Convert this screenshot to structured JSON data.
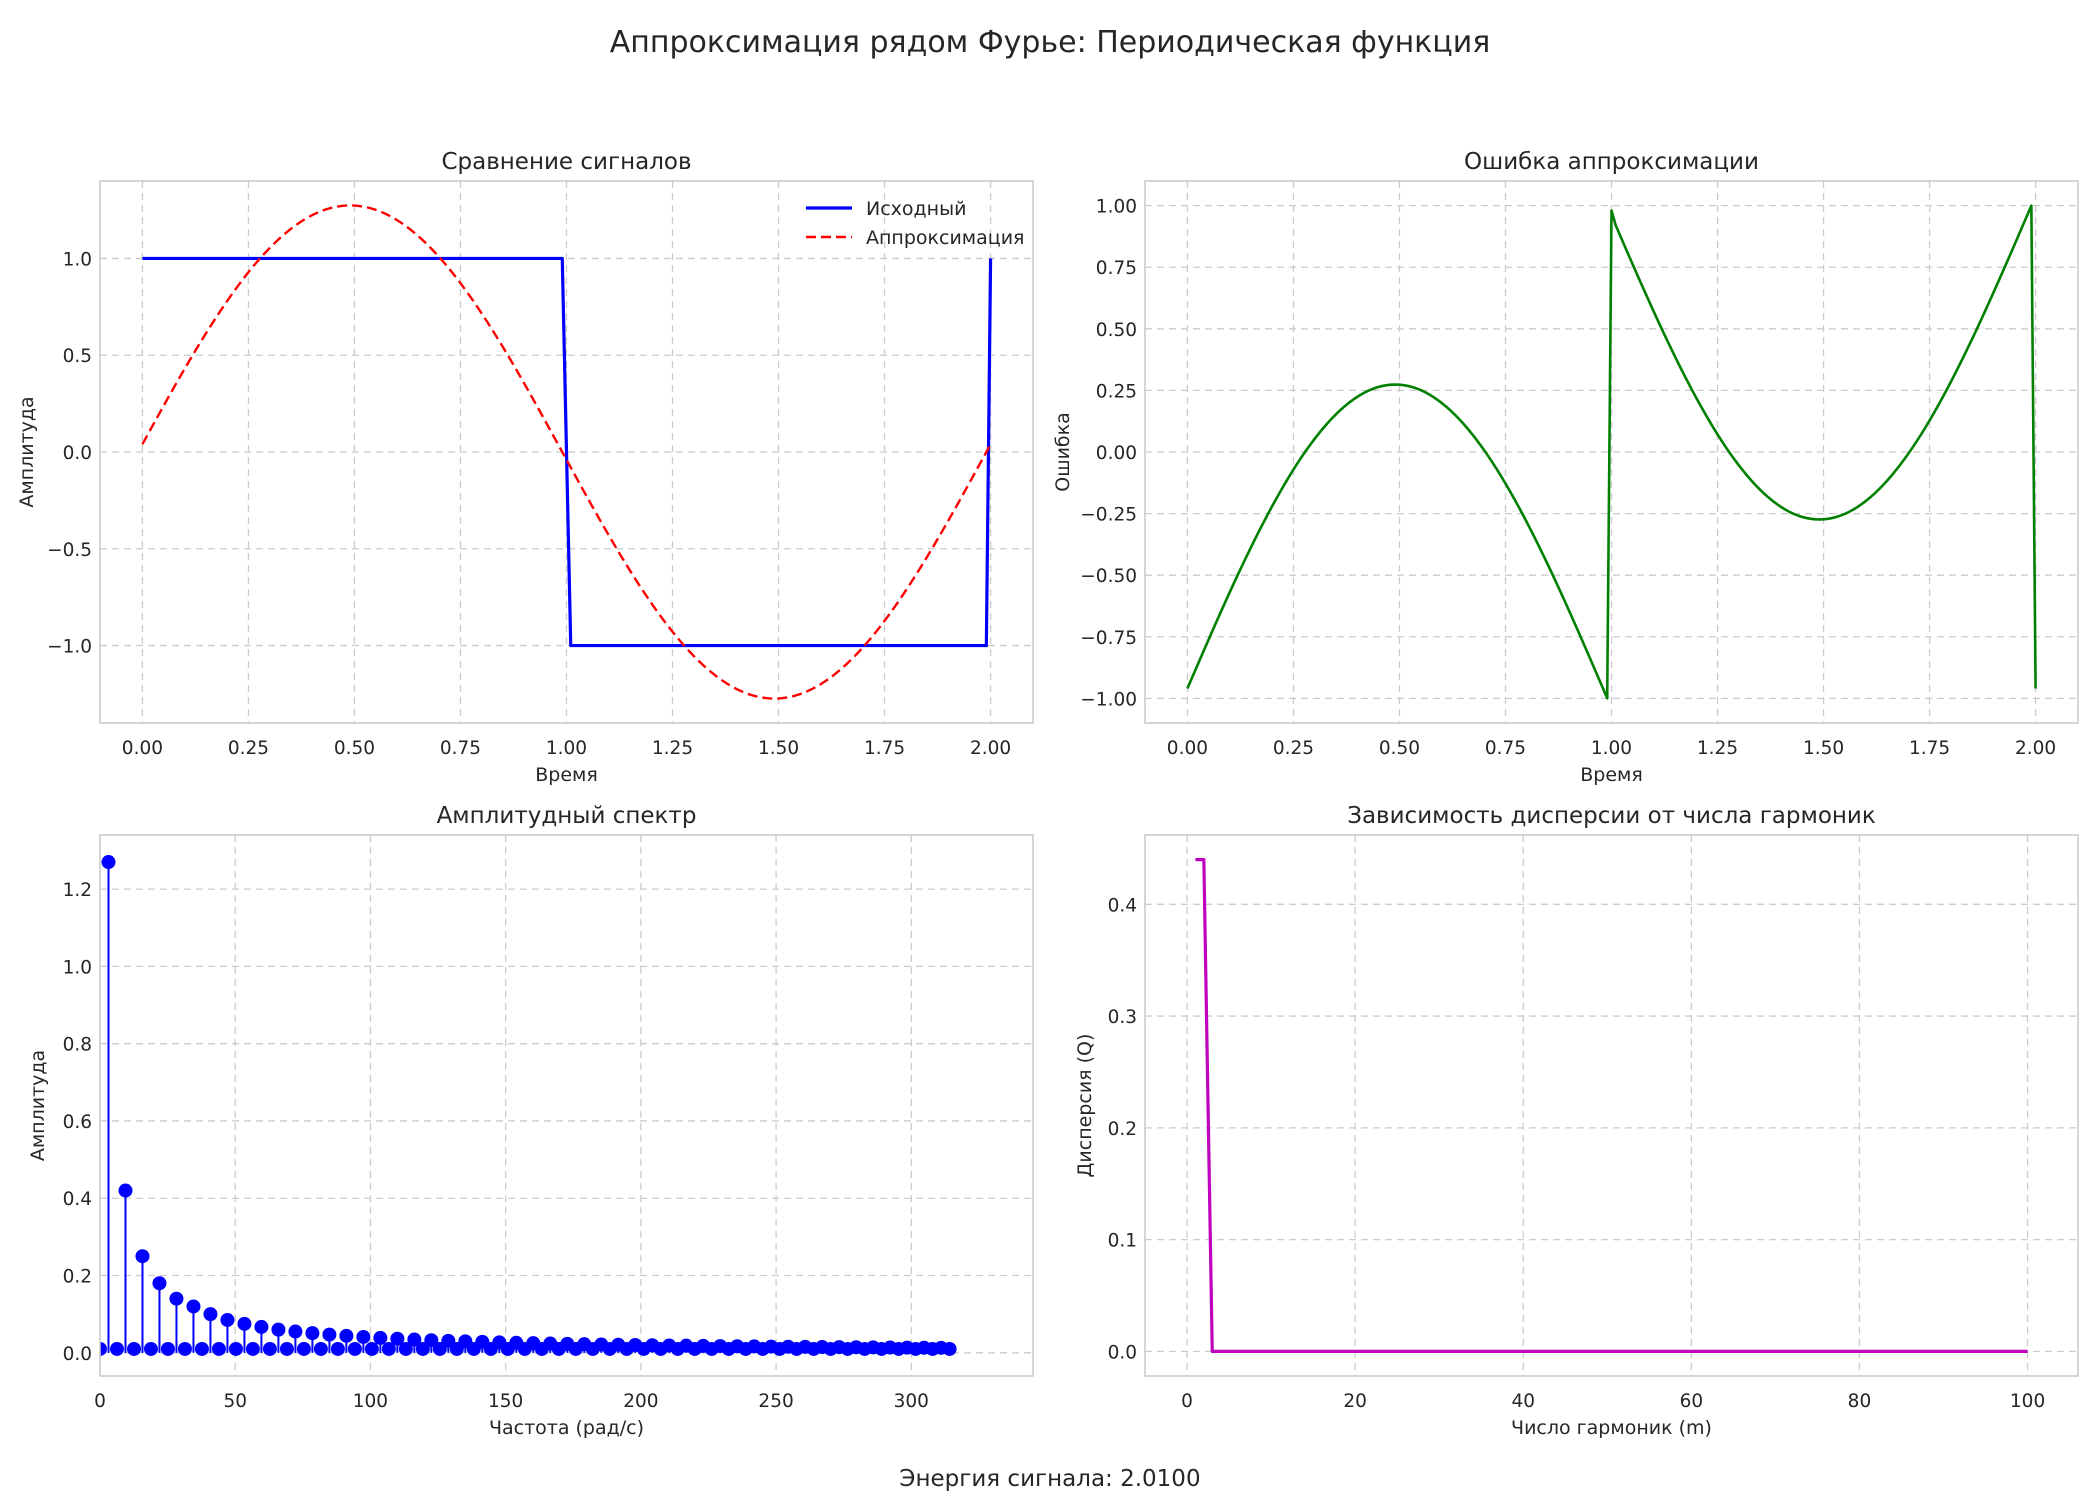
{
  "figure": {
    "suptitle": "Аппроксимация рядом Фурье: Периодическая функция",
    "footer": "Энергия сигнала: 2.0100"
  },
  "chart_data": [
    {
      "type": "line",
      "title": "Сравнение сигналов",
      "xlabel": "Время",
      "ylabel": "Амплитуда",
      "xlim": [
        -0.1,
        2.1
      ],
      "ylim": [
        -1.4,
        1.4
      ],
      "xticks": [
        0,
        0.25,
        0.5,
        0.75,
        1.0,
        1.25,
        1.5,
        1.75,
        2.0
      ],
      "xtick_labels": [
        "0.00",
        "0.25",
        "0.50",
        "0.75",
        "1.00",
        "1.25",
        "1.50",
        "1.75",
        "2.00"
      ],
      "yticks": [
        -1.0,
        -0.5,
        0.0,
        0.5,
        1.0
      ],
      "ytick_labels": [
        "−1.0",
        "−0.5",
        "0.0",
        "0.5",
        "1.0"
      ],
      "grid": true,
      "legend": "top-right",
      "series": [
        {
          "name": "Исходный",
          "color": "#0000ff",
          "style": "solid",
          "x": [
            0,
            0.99,
            1.0,
            1.01,
            1.99,
            2.0
          ],
          "y": [
            1,
            1,
            0,
            -1,
            -1,
            1
          ]
        },
        {
          "name": "Аппроксимация",
          "color": "#ff0000",
          "style": "dashed",
          "x": [
            0,
            0.1,
            0.2,
            0.3,
            0.4,
            0.5,
            0.6,
            0.7,
            0.8,
            0.9,
            1.0,
            1.1,
            1.2,
            1.3,
            1.4,
            1.5,
            1.6,
            1.7,
            1.8,
            1.9,
            2.0
          ],
          "y": [
            0.04,
            0.39,
            0.74,
            1.03,
            1.21,
            1.27,
            1.21,
            1.03,
            0.74,
            0.39,
            0.0,
            -0.39,
            -0.74,
            -1.03,
            -1.21,
            -1.27,
            -1.21,
            -1.03,
            -0.74,
            -0.39,
            0.04
          ]
        }
      ]
    },
    {
      "type": "line",
      "title": "Ошибка аппроксимации",
      "xlabel": "Время",
      "ylabel": "Ошибка",
      "xlim": [
        -0.1,
        2.1
      ],
      "ylim": [
        -1.1,
        1.1
      ],
      "xticks": [
        0,
        0.25,
        0.5,
        0.75,
        1.0,
        1.25,
        1.5,
        1.75,
        2.0
      ],
      "xtick_labels": [
        "0.00",
        "0.25",
        "0.50",
        "0.75",
        "1.00",
        "1.25",
        "1.50",
        "1.75",
        "2.00"
      ],
      "yticks": [
        -1.0,
        -0.75,
        -0.5,
        -0.25,
        0.0,
        0.25,
        0.5,
        0.75,
        1.0
      ],
      "ytick_labels": [
        "−1.00",
        "−0.75",
        "−0.50",
        "−0.25",
        "0.00",
        "0.25",
        "0.50",
        "0.75",
        "1.00"
      ],
      "grid": true,
      "series": [
        {
          "color": "#008000",
          "style": "solid",
          "x": [
            0,
            0.1,
            0.2,
            0.3,
            0.4,
            0.5,
            0.6,
            0.7,
            0.8,
            0.9,
            0.99,
            1.0,
            1.1,
            1.2,
            1.3,
            1.4,
            1.5,
            1.6,
            1.7,
            1.8,
            1.9,
            1.99,
            2.0
          ],
          "y": [
            -0.96,
            -0.61,
            -0.26,
            0.03,
            0.21,
            0.26,
            0.21,
            0.03,
            -0.26,
            -0.61,
            -0.97,
            0.98,
            0.61,
            0.26,
            -0.03,
            -0.21,
            -0.27,
            -0.21,
            -0.03,
            0.26,
            0.61,
            1.0,
            -0.96
          ]
        }
      ]
    },
    {
      "type": "stem",
      "title": "Амплитудный спектр",
      "xlabel": "Частота (рад/с)",
      "ylabel": "Амплитуда",
      "xlim": [
        0,
        345
      ],
      "ylim": [
        -0.06,
        1.34
      ],
      "xticks": [
        0,
        50,
        100,
        150,
        200,
        250,
        300
      ],
      "xtick_labels": [
        "0",
        "50",
        "100",
        "150",
        "200",
        "250",
        "300"
      ],
      "yticks": [
        0.0,
        0.2,
        0.4,
        0.6,
        0.8,
        1.0,
        1.2
      ],
      "ytick_labels": [
        "0.0",
        "0.2",
        "0.4",
        "0.6",
        "0.8",
        "1.0",
        "1.2"
      ],
      "grid": true,
      "series": [
        {
          "color": "#0000ff",
          "harmonic_step_rad_s": 3.1416,
          "harmonic_count": 100,
          "odd_amplitudes_first": [
            1.27,
            0.42,
            0.25,
            0.18,
            0.14,
            0.12,
            0.1,
            0.085,
            0.075,
            0.067,
            0.06,
            0.055
          ],
          "odd_amplitude_rule": "1.2732 / n",
          "even_amplitude": 0.01
        }
      ]
    },
    {
      "type": "line",
      "title": "Зависимость дисперсии от числа гармоник",
      "xlabel": "Число гармоник (m)",
      "ylabel": "Дисперсия (Q)",
      "xlim": [
        -5,
        106
      ],
      "ylim": [
        -0.022,
        0.462
      ],
      "xticks": [
        0,
        20,
        40,
        60,
        80,
        100
      ],
      "xtick_labels": [
        "0",
        "20",
        "40",
        "60",
        "80",
        "100"
      ],
      "yticks": [
        0.0,
        0.1,
        0.2,
        0.3,
        0.4
      ],
      "ytick_labels": [
        "0.0",
        "0.1",
        "0.2",
        "0.3",
        "0.4"
      ],
      "grid": true,
      "series": [
        {
          "color": "#bf00bf",
          "style": "solid",
          "x": [
            1,
            2,
            3,
            100
          ],
          "y": [
            0.44,
            0.44,
            0.0,
            0.0
          ]
        }
      ]
    }
  ]
}
